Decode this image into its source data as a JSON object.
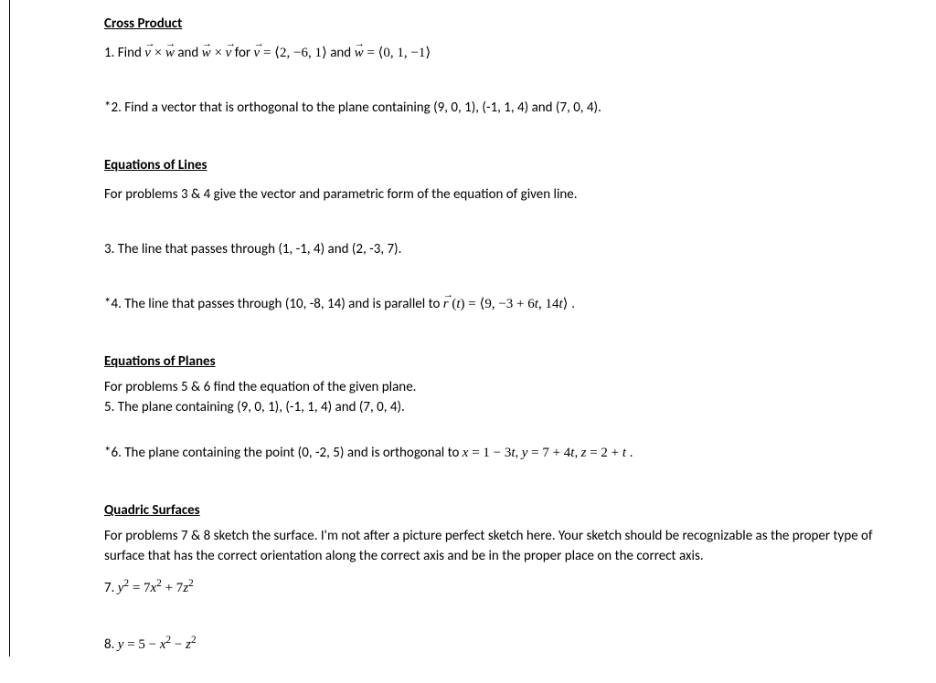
{
  "sections": {
    "crossProduct": {
      "heading": "Cross Product",
      "p1_prefix": "1. Find ",
      "vx": "v",
      "times": " × ",
      "wx": "w",
      "and1": " and ",
      "for": " for ",
      "eq": " = ",
      "v_val": "⟨2, −6, 1⟩",
      "and2": " and ",
      "w_val": "⟨0, 1, −1⟩",
      "p2": "*2.  Find a vector that is orthogonal to the plane containing (9, 0, 1),  (-1, 1, 4) and (7, 0, 4)."
    },
    "lines": {
      "heading": "Equations of Lines",
      "intro": "For problems 3 & 4 give the vector and parametric form of the equation of given line.",
      "p3": "3. The line that passes through (1, -1,  4) and (2, -3, 7).",
      "p4_prefix": "*4. The line that passes through (10, -8, 14) and is parallel to ",
      "r": "r",
      "p4_mid": " (",
      "t": "t",
      "p4_after_t": ") = ",
      "p4_val": "⟨9, −3 + 6",
      "p4_val2": ", 14",
      "p4_end": "⟩ ."
    },
    "planes": {
      "heading": "Equations of Planes",
      "intro": " For problems 5 & 6 find the equation of the given plane.",
      "p5": "5. The plane containing (9, 0, 1),  (-1, 1, 4) and (7, 0, 4).",
      "p6_prefix": "*6. The plane containing the point (0, -2, 5) and is orthogonal to  ",
      "p6_x": "x",
      "p6_eq1": " = 1 − 3",
      "p6_t": "t",
      "p6_c1": ",  ",
      "p6_y": "y",
      "p6_eq2": " = 7 + 4",
      "p6_c2": ",  ",
      "p6_z": "z",
      "p6_eq3": " = 2 + ",
      "p6_end": " ."
    },
    "quadric": {
      "heading": "Quadric Surfaces",
      "intro": "For problems 7 & 8 sketch the surface.  I'm not after a picture perfect sketch here.  Your sketch should be recognizable as the proper type of surface that has the correct orientation along the correct axis and be in the proper place on the correct axis.",
      "p7_prefix": "7.  ",
      "p7_y": "y",
      "p7_eq": " = 7",
      "p7_x": "x",
      "p7_plus": " + 7",
      "p7_z": "z",
      "p8_prefix": "8.  ",
      "p8_y": "y",
      "p8_eq": " = 5 − ",
      "p8_x": "x",
      "p8_minus": " − ",
      "p8_z": "z",
      "sq": "2"
    }
  }
}
